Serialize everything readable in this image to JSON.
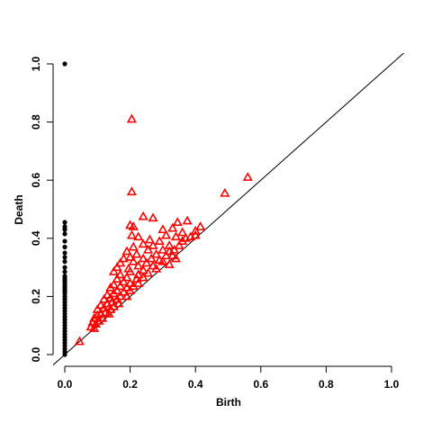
{
  "chart_data": {
    "type": "scatter",
    "title": "",
    "xlabel": "Birth",
    "ylabel": "Death",
    "xlim": [
      0.0,
      1.0
    ],
    "ylim": [
      0.0,
      1.0
    ],
    "xticks": [
      "0.0",
      "0.2",
      "0.4",
      "0.6",
      "0.8",
      "1.0"
    ],
    "yticks": [
      "0.0",
      "0.2",
      "0.4",
      "0.6",
      "0.8",
      "1.0"
    ],
    "diagonal": true,
    "series": [
      {
        "marker": "dot",
        "color": "#000000",
        "points": [
          [
            0,
            1.0
          ],
          [
            0,
            0.455
          ],
          [
            0,
            0.44
          ],
          [
            0,
            0.43
          ],
          [
            0,
            0.415
          ],
          [
            0,
            0.39
          ],
          [
            0,
            0.37
          ],
          [
            0,
            0.35
          ],
          [
            0,
            0.335
          ],
          [
            0,
            0.32
          ],
          [
            0,
            0.3
          ],
          [
            0,
            0.285
          ],
          [
            0,
            0.27
          ],
          [
            0,
            0.262
          ],
          [
            0,
            0.255
          ],
          [
            0,
            0.248
          ],
          [
            0,
            0.24
          ],
          [
            0,
            0.232
          ],
          [
            0,
            0.225
          ],
          [
            0,
            0.218
          ],
          [
            0,
            0.21
          ],
          [
            0,
            0.2
          ],
          [
            0,
            0.19
          ],
          [
            0,
            0.18
          ],
          [
            0,
            0.17
          ],
          [
            0,
            0.16
          ],
          [
            0,
            0.15
          ],
          [
            0,
            0.14
          ],
          [
            0,
            0.13
          ],
          [
            0,
            0.12
          ],
          [
            0,
            0.11
          ],
          [
            0,
            0.1
          ],
          [
            0,
            0.09
          ],
          [
            0,
            0.08
          ],
          [
            0,
            0.07
          ],
          [
            0,
            0.06
          ],
          [
            0,
            0.05
          ],
          [
            0,
            0.04
          ],
          [
            0,
            0.03
          ],
          [
            0,
            0.02
          ],
          [
            0,
            0.01
          ],
          [
            0,
            0.0
          ]
        ]
      },
      {
        "marker": "triangle",
        "color": "#ff0000",
        "points": [
          [
            0.205,
            0.81
          ],
          [
            0.56,
            0.61
          ],
          [
            0.49,
            0.555
          ],
          [
            0.205,
            0.56
          ],
          [
            0.24,
            0.475
          ],
          [
            0.2,
            0.445
          ],
          [
            0.21,
            0.44
          ],
          [
            0.27,
            0.47
          ],
          [
            0.345,
            0.455
          ],
          [
            0.375,
            0.46
          ],
          [
            0.415,
            0.44
          ],
          [
            0.4,
            0.425
          ],
          [
            0.33,
            0.435
          ],
          [
            0.3,
            0.43
          ],
          [
            0.36,
            0.42
          ],
          [
            0.385,
            0.405
          ],
          [
            0.31,
            0.41
          ],
          [
            0.34,
            0.405
          ],
          [
            0.205,
            0.41
          ],
          [
            0.225,
            0.405
          ],
          [
            0.26,
            0.395
          ],
          [
            0.29,
            0.39
          ],
          [
            0.36,
            0.39
          ],
          [
            0.37,
            0.4
          ],
          [
            0.4,
            0.41
          ],
          [
            0.24,
            0.38
          ],
          [
            0.27,
            0.375
          ],
          [
            0.32,
            0.375
          ],
          [
            0.35,
            0.375
          ],
          [
            0.21,
            0.37
          ],
          [
            0.255,
            0.36
          ],
          [
            0.3,
            0.36
          ],
          [
            0.32,
            0.355
          ],
          [
            0.335,
            0.36
          ],
          [
            0.19,
            0.355
          ],
          [
            0.22,
            0.345
          ],
          [
            0.28,
            0.345
          ],
          [
            0.31,
            0.34
          ],
          [
            0.33,
            0.34
          ],
          [
            0.2,
            0.335
          ],
          [
            0.24,
            0.33
          ],
          [
            0.265,
            0.33
          ],
          [
            0.29,
            0.325
          ],
          [
            0.34,
            0.33
          ],
          [
            0.18,
            0.33
          ],
          [
            0.21,
            0.32
          ],
          [
            0.25,
            0.315
          ],
          [
            0.3,
            0.32
          ],
          [
            0.32,
            0.31
          ],
          [
            0.17,
            0.315
          ],
          [
            0.225,
            0.305
          ],
          [
            0.27,
            0.305
          ],
          [
            0.16,
            0.3
          ],
          [
            0.195,
            0.295
          ],
          [
            0.24,
            0.29
          ],
          [
            0.28,
            0.295
          ],
          [
            0.2,
            0.285
          ],
          [
            0.15,
            0.285
          ],
          [
            0.225,
            0.275
          ],
          [
            0.255,
            0.28
          ],
          [
            0.17,
            0.275
          ],
          [
            0.19,
            0.265
          ],
          [
            0.22,
            0.26
          ],
          [
            0.24,
            0.265
          ],
          [
            0.16,
            0.26
          ],
          [
            0.18,
            0.25
          ],
          [
            0.2,
            0.245
          ],
          [
            0.225,
            0.245
          ],
          [
            0.15,
            0.24
          ],
          [
            0.17,
            0.235
          ],
          [
            0.19,
            0.23
          ],
          [
            0.21,
            0.235
          ],
          [
            0.14,
            0.23
          ],
          [
            0.16,
            0.22
          ],
          [
            0.18,
            0.215
          ],
          [
            0.2,
            0.22
          ],
          [
            0.15,
            0.21
          ],
          [
            0.13,
            0.205
          ],
          [
            0.17,
            0.2
          ],
          [
            0.19,
            0.2
          ],
          [
            0.14,
            0.195
          ],
          [
            0.16,
            0.19
          ],
          [
            0.12,
            0.19
          ],
          [
            0.145,
            0.18
          ],
          [
            0.165,
            0.175
          ],
          [
            0.13,
            0.175
          ],
          [
            0.11,
            0.17
          ],
          [
            0.15,
            0.165
          ],
          [
            0.12,
            0.16
          ],
          [
            0.14,
            0.155
          ],
          [
            0.1,
            0.155
          ],
          [
            0.125,
            0.145
          ],
          [
            0.11,
            0.14
          ],
          [
            0.135,
            0.14
          ],
          [
            0.1,
            0.135
          ],
          [
            0.115,
            0.125
          ],
          [
            0.09,
            0.125
          ],
          [
            0.105,
            0.115
          ],
          [
            0.085,
            0.11
          ],
          [
            0.095,
            0.105
          ],
          [
            0.08,
            0.095
          ],
          [
            0.09,
            0.09
          ],
          [
            0.045,
            0.045
          ]
        ]
      }
    ]
  }
}
